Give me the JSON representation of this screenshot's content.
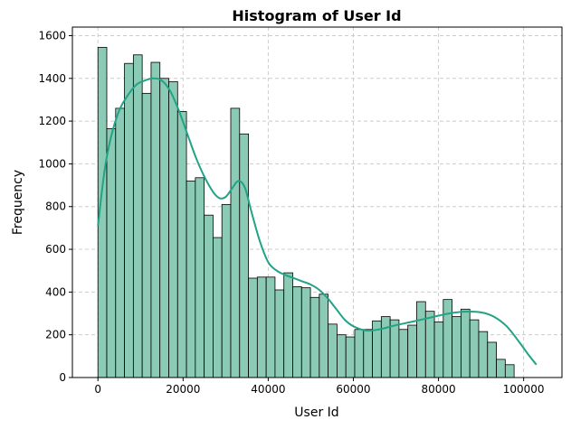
{
  "chart_data": {
    "type": "bar",
    "title": "Histogram of User Id",
    "xlabel": "User Id",
    "ylabel": "Frequency",
    "xlim": [
      -6000,
      109000
    ],
    "ylim": [
      0,
      1640
    ],
    "xticks": [
      0,
      20000,
      40000,
      60000,
      80000,
      100000
    ],
    "xtick_labels": [
      "0",
      "20000",
      "40000",
      "60000",
      "80000",
      "100000"
    ],
    "yticks": [
      0,
      200,
      400,
      600,
      800,
      1000,
      1200,
      1400,
      1600
    ],
    "ytick_labels": [
      "0",
      "200",
      "400",
      "600",
      "800",
      "1000",
      "1200",
      "1400",
      "1600"
    ],
    "grid": true,
    "bin_start": 0,
    "bin_width": 2080,
    "values": [
      1545,
      1165,
      1260,
      1470,
      1510,
      1330,
      1475,
      1400,
      1385,
      1245,
      920,
      935,
      760,
      655,
      810,
      1260,
      1140,
      465,
      470,
      470,
      410,
      490,
      425,
      420,
      375,
      390,
      250,
      200,
      190,
      225,
      225,
      265,
      285,
      270,
      225,
      245,
      355,
      310,
      260,
      365,
      285,
      320,
      270,
      215,
      165,
      85,
      60
    ],
    "kde": {
      "x": [
        0,
        1500,
        3000,
        5000,
        7000,
        9000,
        11000,
        13000,
        15000,
        17000,
        19000,
        21000,
        23000,
        25000,
        27000,
        28500,
        30000,
        31500,
        33000,
        34500,
        36000,
        38000,
        40000,
        42000,
        44000,
        46000,
        48000,
        50000,
        52000,
        54000,
        56000,
        58000,
        60000,
        63000,
        66000,
        70000,
        74000,
        78000,
        82000,
        86000,
        90000,
        93000,
        96000,
        99000,
        101000,
        103000
      ],
      "y": [
        710,
        960,
        1120,
        1250,
        1320,
        1370,
        1390,
        1400,
        1390,
        1340,
        1250,
        1140,
        1030,
        940,
        870,
        840,
        845,
        885,
        920,
        890,
        780,
        640,
        540,
        500,
        480,
        465,
        450,
        435,
        410,
        370,
        320,
        270,
        240,
        220,
        225,
        245,
        262,
        280,
        298,
        308,
        305,
        285,
        240,
        165,
        110,
        60
      ]
    },
    "colors": {
      "bar_fill": "#8bcbb5",
      "bar_edge": "#000000",
      "kde_line": "#20a386",
      "grid": "#cccccc"
    }
  }
}
